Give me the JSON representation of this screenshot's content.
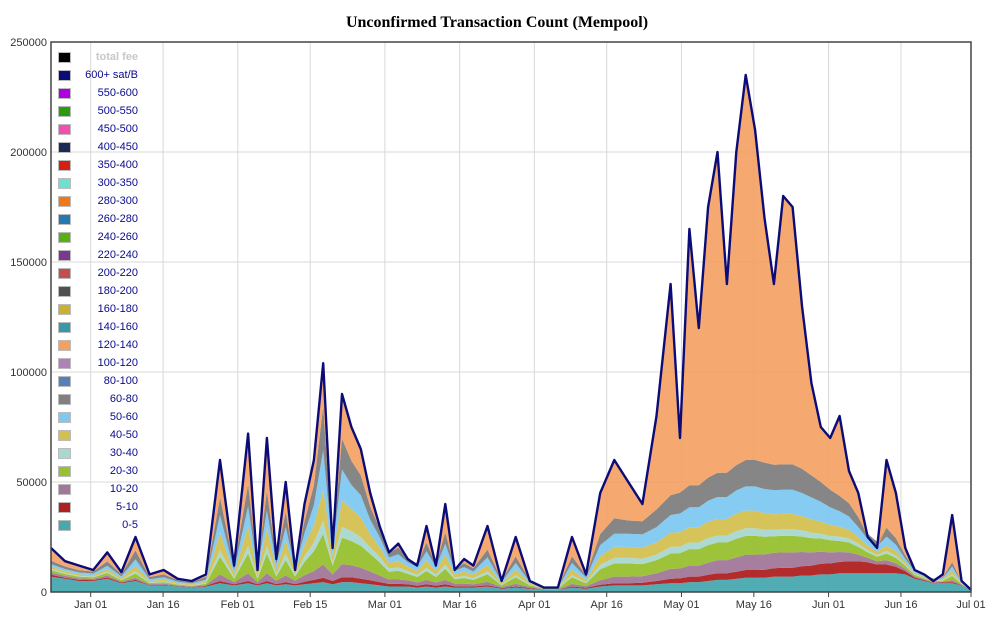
{
  "chart_data": {
    "type": "area",
    "title": "Unconfirmed Transaction Count (Mempool)",
    "xlabel": "",
    "ylabel": "",
    "ylim": [
      0,
      250000
    ],
    "yticks": [
      "0",
      "50000",
      "100000",
      "150000",
      "200000",
      "250000"
    ],
    "xticks": [
      "Jan 01",
      "Jan 16",
      "Feb 01",
      "Feb 15",
      "Mar 01",
      "Mar 16",
      "Apr 01",
      "Apr 16",
      "May 01",
      "May 16",
      "Jun 01",
      "Jun 16",
      "Jul 01"
    ],
    "grid": true,
    "legend_position": "top-left",
    "legend": [
      {
        "name": "total fee",
        "color": "#000000"
      },
      {
        "name": "600+ sat/B",
        "color": "#0c0c78"
      },
      {
        "name": "550-600",
        "color": "#b000e0"
      },
      {
        "name": "500-550",
        "color": "#2e9a10"
      },
      {
        "name": "450-500",
        "color": "#f050b0"
      },
      {
        "name": "400-450",
        "color": "#1a2a55"
      },
      {
        "name": "350-400",
        "color": "#d42010"
      },
      {
        "name": "300-350",
        "color": "#6de0d0"
      },
      {
        "name": "280-300",
        "color": "#f07818"
      },
      {
        "name": "260-280",
        "color": "#2878b0"
      },
      {
        "name": "240-260",
        "color": "#58b018"
      },
      {
        "name": "220-240",
        "color": "#7a3890"
      },
      {
        "name": "200-220",
        "color": "#c05050"
      },
      {
        "name": "180-200",
        "color": "#505050"
      },
      {
        "name": "160-180",
        "color": "#c8b030"
      },
      {
        "name": "140-160",
        "color": "#3898a8"
      },
      {
        "name": "120-140",
        "color": "#f4a060"
      },
      {
        "name": "100-120",
        "color": "#b080b8"
      },
      {
        "name": "80-100",
        "color": "#5880b8"
      },
      {
        "name": "60-80",
        "color": "#808080"
      },
      {
        "name": "50-60",
        "color": "#80c8f0"
      },
      {
        "name": "40-50",
        "color": "#d4c050"
      },
      {
        "name": "30-40",
        "color": "#a8d8d0"
      },
      {
        "name": "20-30",
        "color": "#98c030"
      },
      {
        "name": "10-20",
        "color": "#a07898"
      },
      {
        "name": "5-10",
        "color": "#b02020"
      },
      {
        "name": "0-5",
        "color": "#48a8b0"
      }
    ],
    "x": [
      0,
      3,
      6,
      9,
      12,
      15,
      18,
      21,
      24,
      27,
      30,
      33,
      36,
      39,
      42,
      44,
      46,
      48,
      50,
      52,
      54,
      56,
      58,
      60,
      62,
      64,
      66,
      68,
      70,
      72,
      74,
      76,
      78,
      80,
      82,
      84,
      86,
      88,
      90,
      93,
      96,
      99,
      102,
      105,
      108,
      111,
      114,
      117,
      120,
      123,
      126,
      129,
      132,
      134,
      136,
      138,
      140,
      142,
      144,
      146,
      148,
      150,
      152,
      154,
      156,
      158,
      160,
      162,
      164,
      166,
      168,
      170,
      172,
      174,
      176,
      178,
      180,
      182,
      184,
      186,
      188,
      190,
      192,
      194,
      196
    ],
    "total": [
      20000,
      14000,
      12000,
      10000,
      18000,
      9000,
      25000,
      8000,
      10000,
      6000,
      5000,
      8000,
      60000,
      12000,
      72000,
      10000,
      70000,
      15000,
      50000,
      10000,
      40000,
      60000,
      104000,
      20000,
      90000,
      75000,
      65000,
      45000,
      30000,
      18000,
      22000,
      15000,
      12000,
      30000,
      12000,
      40000,
      10000,
      15000,
      12000,
      30000,
      5000,
      25000,
      5000,
      2000,
      2000,
      25000,
      8000,
      45000,
      60000,
      50000,
      40000,
      80000,
      140000,
      70000,
      165000,
      120000,
      175000,
      200000,
      140000,
      200000,
      235000,
      210000,
      170000,
      140000,
      180000,
      175000,
      130000,
      95000,
      75000,
      70000,
      80000,
      55000,
      45000,
      25000,
      20000,
      60000,
      45000,
      20000,
      10000,
      8000,
      5000,
      8000,
      35000,
      5000,
      1000
    ],
    "series": [
      {
        "name": "0-5",
        "values": [
          7000,
          6000,
          5000,
          5000,
          6000,
          4000,
          5000,
          3000,
          3000,
          2500,
          2000,
          2500,
          4000,
          3000,
          4000,
          3000,
          4000,
          3000,
          3500,
          3000,
          3500,
          4000,
          4500,
          3500,
          4500,
          4500,
          4000,
          3500,
          3000,
          2500,
          2500,
          2500,
          2000,
          2500,
          2000,
          2500,
          2000,
          2000,
          2000,
          2500,
          1500,
          2000,
          1500,
          1000,
          1000,
          2000,
          1500,
          2500,
          3000,
          3000,
          3000,
          3500,
          4000,
          4000,
          4500,
          4500,
          5000,
          5500,
          5500,
          6000,
          6500,
          6500,
          6500,
          7000,
          7000,
          7000,
          7500,
          7500,
          8000,
          8000,
          8500,
          8500,
          8500,
          8500,
          8500,
          8500,
          8500,
          8000,
          6000,
          5000,
          4000,
          4000,
          4000,
          3000,
          800
        ]
      },
      {
        "name": "5-10",
        "values": [
          800,
          500,
          500,
          400,
          600,
          300,
          500,
          200,
          300,
          200,
          200,
          300,
          1000,
          500,
          1000,
          500,
          1000,
          600,
          1000,
          600,
          1200,
          1500,
          2000,
          1500,
          2200,
          2200,
          2000,
          1800,
          1500,
          1200,
          1200,
          1000,
          800,
          1000,
          800,
          1000,
          600,
          600,
          500,
          600,
          300,
          500,
          300,
          100,
          100,
          500,
          400,
          800,
          1000,
          1000,
          1200,
          1500,
          2000,
          2200,
          2500,
          2500,
          2800,
          3000,
          3000,
          3200,
          3500,
          3500,
          3600,
          3800,
          4000,
          4000,
          4200,
          4500,
          4800,
          5000,
          5200,
          5500,
          5500,
          5000,
          4000,
          4000,
          3000,
          1500,
          600,
          400,
          200,
          300,
          500,
          200,
          50
        ]
      },
      {
        "name": "10-20",
        "values": [
          1000,
          800,
          700,
          600,
          900,
          500,
          900,
          400,
          500,
          300,
          300,
          400,
          3000,
          1000,
          3500,
          1000,
          3500,
          1500,
          3000,
          1500,
          3000,
          4000,
          6000,
          3000,
          6000,
          5500,
          5000,
          4000,
          3000,
          2000,
          2000,
          1800,
          1500,
          2000,
          1500,
          2000,
          1200,
          1200,
          1000,
          1500,
          500,
          1200,
          500,
          200,
          200,
          1200,
          800,
          2000,
          3000,
          3000,
          3000,
          3500,
          4500,
          4500,
          5000,
          5000,
          5500,
          6000,
          6000,
          6500,
          7000,
          7000,
          7000,
          7000,
          7000,
          7000,
          6500,
          6000,
          5500,
          5000,
          4500,
          4000,
          3000,
          2000,
          1500,
          2000,
          1500,
          1000,
          500,
          400,
          300,
          400,
          800,
          200,
          50
        ]
      },
      {
        "name": "20-30",
        "values": [
          1200,
          900,
          800,
          700,
          1200,
          600,
          2000,
          500,
          700,
          400,
          300,
          600,
          8000,
          1500,
          9000,
          1500,
          9000,
          2000,
          7000,
          2000,
          6000,
          9000,
          14000,
          4000,
          12000,
          11000,
          10000,
          8000,
          6000,
          3500,
          4000,
          3000,
          2500,
          4000,
          2500,
          5000,
          2000,
          2500,
          2000,
          3500,
          800,
          3000,
          800,
          300,
          300,
          3000,
          1200,
          5000,
          6000,
          6000,
          5500,
          6000,
          7000,
          7000,
          7500,
          7500,
          8000,
          8000,
          8000,
          8500,
          8500,
          8500,
          8000,
          7500,
          7500,
          7500,
          7000,
          6500,
          6000,
          5500,
          5000,
          4500,
          3500,
          2500,
          2000,
          3000,
          2500,
          1500,
          700,
          500,
          400,
          500,
          2000,
          300,
          50
        ]
      },
      {
        "name": "30-40",
        "values": [
          500,
          400,
          300,
          300,
          500,
          300,
          1000,
          300,
          400,
          200,
          200,
          300,
          3000,
          700,
          3500,
          700,
          3500,
          1000,
          3000,
          800,
          2500,
          4000,
          6000,
          1500,
          5000,
          4500,
          4000,
          3000,
          2500,
          1500,
          1500,
          1200,
          1000,
          1500,
          1000,
          2000,
          800,
          1000,
          800,
          1200,
          300,
          1000,
          300,
          100,
          100,
          1000,
          500,
          2000,
          2500,
          2500,
          2500,
          2500,
          3000,
          3000,
          3000,
          3000,
          3200,
          3200,
          3200,
          3500,
          3500,
          3500,
          3200,
          3000,
          3000,
          3000,
          2800,
          2500,
          2200,
          2000,
          2000,
          1800,
          1500,
          1000,
          800,
          1200,
          1000,
          600,
          300,
          200,
          200,
          200,
          800,
          100,
          20
        ]
      },
      {
        "name": "40-50",
        "values": [
          1000,
          800,
          700,
          600,
          1200,
          600,
          2500,
          600,
          800,
          500,
          400,
          700,
          8000,
          1500,
          9000,
          1500,
          8000,
          2000,
          6000,
          1500,
          5000,
          8000,
          14000,
          3000,
          12000,
          10000,
          9000,
          6000,
          4500,
          2500,
          3000,
          2000,
          1800,
          3500,
          1800,
          4500,
          1500,
          2000,
          1500,
          3000,
          600,
          2500,
          600,
          200,
          200,
          2500,
          1000,
          4000,
          5000,
          5000,
          5000,
          5500,
          6500,
          6500,
          7000,
          7000,
          7500,
          7500,
          7500,
          8000,
          8000,
          8000,
          7500,
          7000,
          7000,
          7000,
          6500,
          6000,
          5500,
          5000,
          4500,
          4000,
          3000,
          2000,
          1500,
          2500,
          2000,
          1000,
          500,
          400,
          300,
          400,
          1500,
          200,
          30
        ]
      },
      {
        "name": "50-60",
        "values": [
          1200,
          1000,
          900,
          800,
          1500,
          800,
          3000,
          800,
          1000,
          600,
          500,
          900,
          8000,
          1800,
          9000,
          1800,
          8000,
          2500,
          6000,
          1500,
          5500,
          9000,
          18000,
          3000,
          14000,
          11000,
          10000,
          6500,
          4500,
          2500,
          3000,
          2000,
          1800,
          4000,
          1800,
          5000,
          1500,
          2000,
          1500,
          3500,
          700,
          3000,
          700,
          200,
          200,
          3000,
          1200,
          5000,
          6000,
          6000,
          6000,
          7000,
          8000,
          8500,
          9000,
          9000,
          9500,
          10000,
          10000,
          10500,
          11000,
          11000,
          11000,
          11000,
          11000,
          11000,
          10500,
          10000,
          9000,
          8000,
          7000,
          6000,
          4500,
          3000,
          2500,
          4000,
          3000,
          1500,
          800,
          500,
          400,
          500,
          2000,
          300,
          30
        ]
      },
      {
        "name": "60-80",
        "values": [
          1500,
          1200,
          1000,
          900,
          2000,
          1000,
          4000,
          1000,
          1300,
          700,
          600,
          1100,
          8000,
          2000,
          10000,
          2000,
          9000,
          2500,
          7000,
          1500,
          5500,
          9000,
          20000,
          2000,
          14000,
          11000,
          9000,
          6000,
          4000,
          2200,
          3000,
          1800,
          1600,
          4000,
          1600,
          5000,
          1400,
          1800,
          1500,
          3500,
          600,
          3000,
          600,
          200,
          200,
          3000,
          1000,
          5000,
          7000,
          6000,
          6000,
          8000,
          9000,
          9500,
          10000,
          10000,
          10500,
          11000,
          11000,
          11500,
          12000,
          12000,
          12000,
          11500,
          11500,
          11500,
          11000,
          10000,
          9000,
          8000,
          7000,
          6000,
          4500,
          2500,
          2000,
          4000,
          3000,
          1500,
          700,
          500,
          300,
          400,
          2000,
          200,
          20
        ]
      }
    ]
  }
}
